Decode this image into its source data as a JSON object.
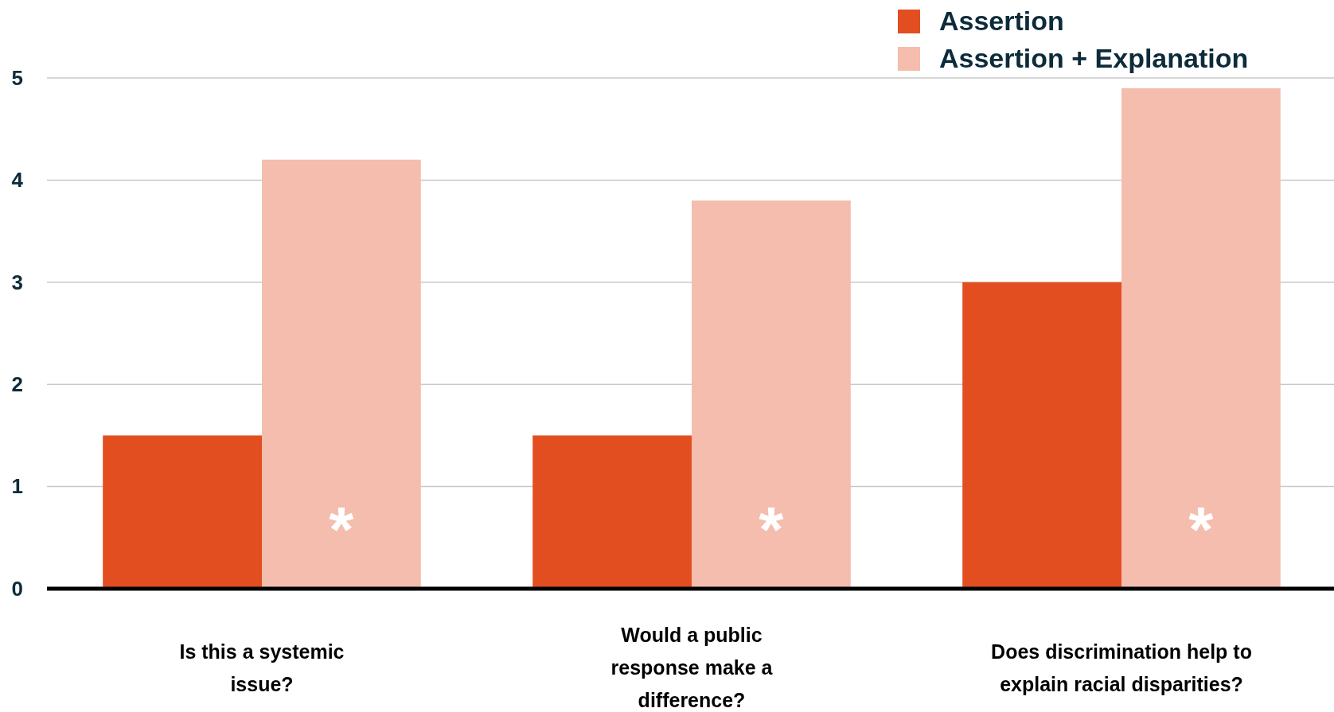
{
  "chart_data": {
    "type": "bar",
    "categories": [
      "Is this a systemic issue?",
      "Would a public response make a difference?",
      "Does discrimination help to explain racial disparities?"
    ],
    "series": [
      {
        "name": "Assertion",
        "color": "#e34e20",
        "values": [
          1.5,
          1.5,
          3.0
        ]
      },
      {
        "name": "Assertion + Explanation",
        "color": "#f4bdae",
        "values": [
          4.2,
          3.8,
          4.9
        ]
      }
    ],
    "ylim": [
      0,
      5
    ],
    "yticks": [
      0,
      1,
      2,
      3,
      4,
      5
    ],
    "grid": "y",
    "legend": "top right",
    "annotations": [
      {
        "text": "*",
        "x": "Is this a systemic issue?",
        "y": 0.6
      },
      {
        "text": "*",
        "x": "Would a public response make a difference?",
        "y": 0.6
      },
      {
        "text": "*",
        "x": "Does discrimination help to explain racial disparities?",
        "y": 0.6
      }
    ]
  }
}
